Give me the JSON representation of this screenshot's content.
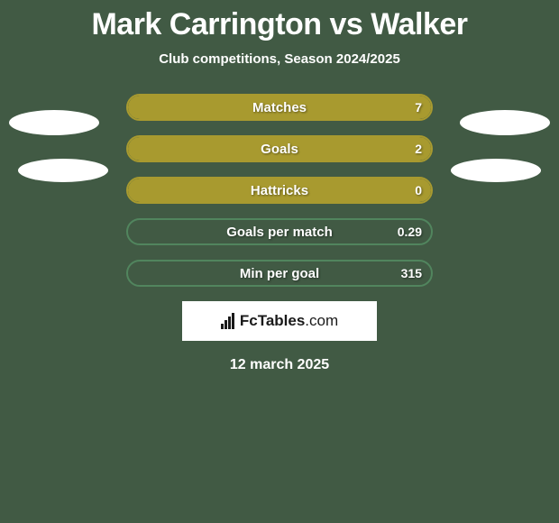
{
  "title": "Mark Carrington vs Walker",
  "subtitle": "Club competitions, Season 2024/2025",
  "date": "12 march 2025",
  "brand": {
    "name": "FcTables",
    "domain": ".com"
  },
  "colors": {
    "background": "#415a44",
    "bar_border": "#a89a2f",
    "bar_fill": "#a89a2f",
    "empty_border": "#51855e",
    "text": "#ffffff",
    "brand_bg": "#ffffff",
    "brand_fg": "#1a1a1a"
  },
  "stats": [
    {
      "label": "Matches",
      "value_text": "7",
      "fill_pct": 100,
      "border_color": "#a89a2f",
      "fill_color": "#a89a2f"
    },
    {
      "label": "Goals",
      "value_text": "2",
      "fill_pct": 100,
      "border_color": "#a89a2f",
      "fill_color": "#a89a2f"
    },
    {
      "label": "Hattricks",
      "value_text": "0",
      "fill_pct": 100,
      "border_color": "#a89a2f",
      "fill_color": "#a89a2f"
    },
    {
      "label": "Goals per match",
      "value_text": "0.29",
      "fill_pct": 0,
      "border_color": "#51855e",
      "fill_color": "transparent"
    },
    {
      "label": "Min per goal",
      "value_text": "315",
      "fill_pct": 0,
      "border_color": "#51855e",
      "fill_color": "transparent"
    }
  ]
}
